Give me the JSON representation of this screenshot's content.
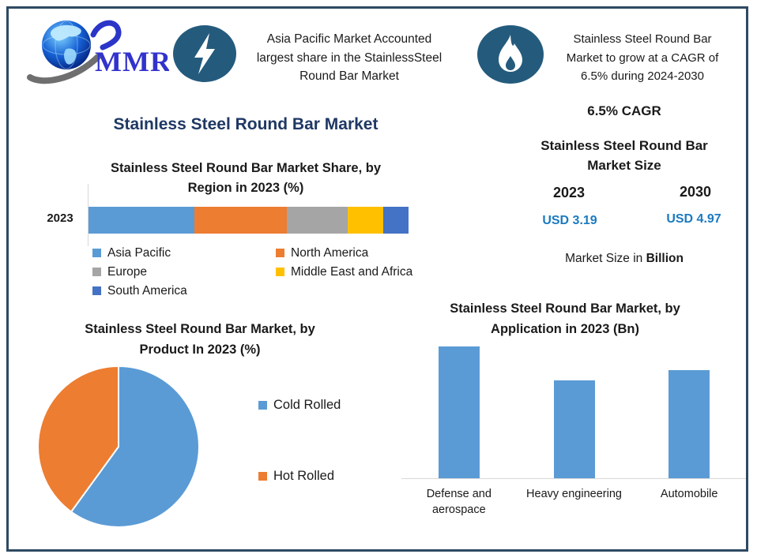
{
  "poster": {
    "logo_text": "MMR",
    "header": {
      "fact1": {
        "icon": "lightning-icon",
        "lines": [
          "Asia Pacific Market Accounted",
          "largest share in the StainlessSteel",
          "Round Bar Market"
        ]
      },
      "fact2": {
        "icon": "flame-icon",
        "lines": [
          "Stainless Steel Round Bar",
          "Market  to grow at a CAGR of",
          "6.5%  during 2024-2030"
        ]
      }
    },
    "main_title": "Stainless Steel Round Bar Market",
    "right_panel": {
      "cagr": "6.5% CAGR",
      "market_size_title_lines": [
        "Stainless Steel Round Bar",
        "Market Size"
      ],
      "year_start": "2023",
      "year_end": "2030",
      "value_start": "USD 3.19",
      "value_end": "USD 4.97",
      "note_prefix": "Market Size in ",
      "note_bold": "Billion",
      "value_color": "#1b7ac0"
    },
    "colors": {
      "border": "#2e4a62",
      "main_title": "#1f3864",
      "icon_bg": "#245b7d",
      "axis_line": "#d9d9d9",
      "chart_blue": "#5b9bd5"
    }
  },
  "chart_data": [
    {
      "type": "bar",
      "subtype": "stacked-horizontal",
      "title": "Stainless Steel Round Bar Market Share, by Region in 2023 (%)",
      "title_lines": [
        "Stainless Steel Round Bar Market Share, by",
        "Region in 2023 (%)"
      ],
      "categories": [
        "2023"
      ],
      "series": [
        {
          "name": "Asia Pacific",
          "values": [
            33
          ],
          "color": "#5b9bd5"
        },
        {
          "name": "North America",
          "values": [
            29
          ],
          "color": "#ed7d31"
        },
        {
          "name": "Europe",
          "values": [
            19
          ],
          "color": "#a5a5a5"
        },
        {
          "name": "Middle East and Africa",
          "values": [
            11
          ],
          "color": "#ffc000"
        },
        {
          "name": "South America",
          "values": [
            8
          ],
          "color": "#4472c4"
        }
      ],
      "xlim": [
        0,
        100
      ],
      "grid": false,
      "legend_position": "bottom"
    },
    {
      "type": "pie",
      "title": "Stainless Steel Round Bar Market, by Product In 2023 (%)",
      "title_lines": [
        "Stainless Steel Round Bar Market, by",
        "Product In 2023 (%)"
      ],
      "labels": [
        "Cold Rolled",
        "Hot Rolled"
      ],
      "values": [
        60,
        40
      ],
      "colors": [
        "#5b9bd5",
        "#ed7d31"
      ],
      "start_angle_deg": 0,
      "direction": "clockwise",
      "legend_position": "right"
    },
    {
      "type": "bar",
      "title": "Stainless Steel Round Bar Market, by Application in 2023 (Bn)",
      "title_lines": [
        "Stainless Steel Round Bar Market, by",
        "Application in 2023 (Bn)"
      ],
      "categories": [
        "Defense and aerospace",
        "Heavy engineering",
        "Automobile"
      ],
      "values": [
        1.0,
        0.74,
        0.82
      ],
      "values_note": "relative bar heights; value axis not labeled in figure",
      "bar_color": "#5b9bd5",
      "grid": false
    }
  ]
}
